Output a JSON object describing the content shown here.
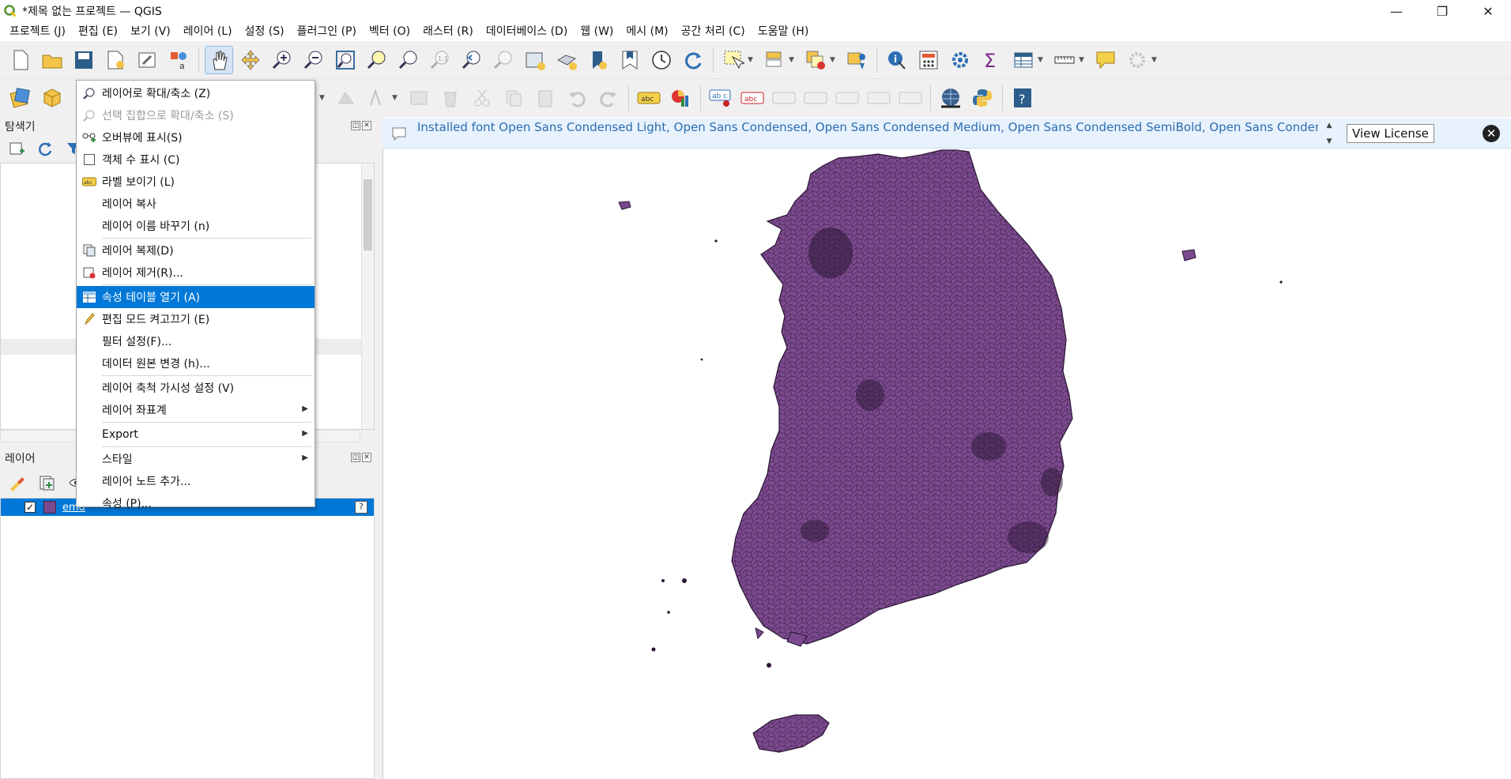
{
  "window": {
    "title": "*제목 없는 프로젝트 — QGIS",
    "minimize": "—",
    "restore": "❐",
    "close": "✕"
  },
  "menubar": [
    "프로젝트 (J)",
    "편집 (E)",
    "보기 (V)",
    "레이어 (L)",
    "설정 (S)",
    "플러그인 (P)",
    "벡터 (O)",
    "래스터 (R)",
    "데이터베이스 (D)",
    "웹 (W)",
    "메시 (M)",
    "공간 처리 (C)",
    "도움말 (H)"
  ],
  "panels": {
    "browser_title": "탐색기",
    "layers_title": "레이어"
  },
  "layers": [
    {
      "name": "emd",
      "checked": "✓",
      "color": "#7b4a8e",
      "help": "?"
    }
  ],
  "message_bar": {
    "text": "Installed font Open Sans Condensed Light, Open Sans Condensed, Open Sans Condensed Medium, Open Sans Condensed SemiBold, Open Sans Condensed ExtraBold, Open Sans SemiCondensed Light, Open Sans SemiCondensed, Open Sans SemiCondensed Medium, Open Sans",
    "view_license": "View License",
    "close": "✕"
  },
  "context_menu": {
    "items": [
      {
        "label": "레이어로 확대/축소 (Z)",
        "icon": "zoom-layer-icon"
      },
      {
        "label": "선택 집합으로 확대/축소 (S)",
        "icon": "zoom-selection-icon",
        "disabled": true
      },
      {
        "label": "오버뷰에 표시(S)",
        "icon": "overview-icon"
      },
      {
        "label": "객체 수 표시 (C)",
        "icon": "checkbox-icon"
      },
      {
        "label": "라벨 보이기 (L)",
        "icon": "label-icon"
      },
      {
        "label": "레이어 복사"
      },
      {
        "label": "레이어 이름 바꾸기 (n)"
      },
      {
        "label": "레이어 복제(D)",
        "icon": "duplicate-icon"
      },
      {
        "label": "레이어 제거(R)...",
        "icon": "remove-layer-icon"
      },
      {
        "label": "속성 테이블 열기 (A)",
        "icon": "attribute-table-icon",
        "selected": true
      },
      {
        "label": "편집 모드 켜고끄기 (E)",
        "icon": "pencil-icon"
      },
      {
        "label": "필터 설정(F)..."
      },
      {
        "label": "데이터 원본 변경 (h)..."
      },
      {
        "label": "레이어 축척 가시성 설정 (V)"
      },
      {
        "label": "레이어 좌표계",
        "submenu": true
      },
      {
        "label": "Export",
        "submenu": true
      },
      {
        "label": "스타일",
        "submenu": true
      },
      {
        "label": "레이어 노트 추가..."
      },
      {
        "label": "속성 (P)..."
      }
    ]
  },
  "colors": {
    "accent": "#0078d7",
    "layer_fill": "#7b4a8e",
    "message_text": "#2a6cb2"
  }
}
